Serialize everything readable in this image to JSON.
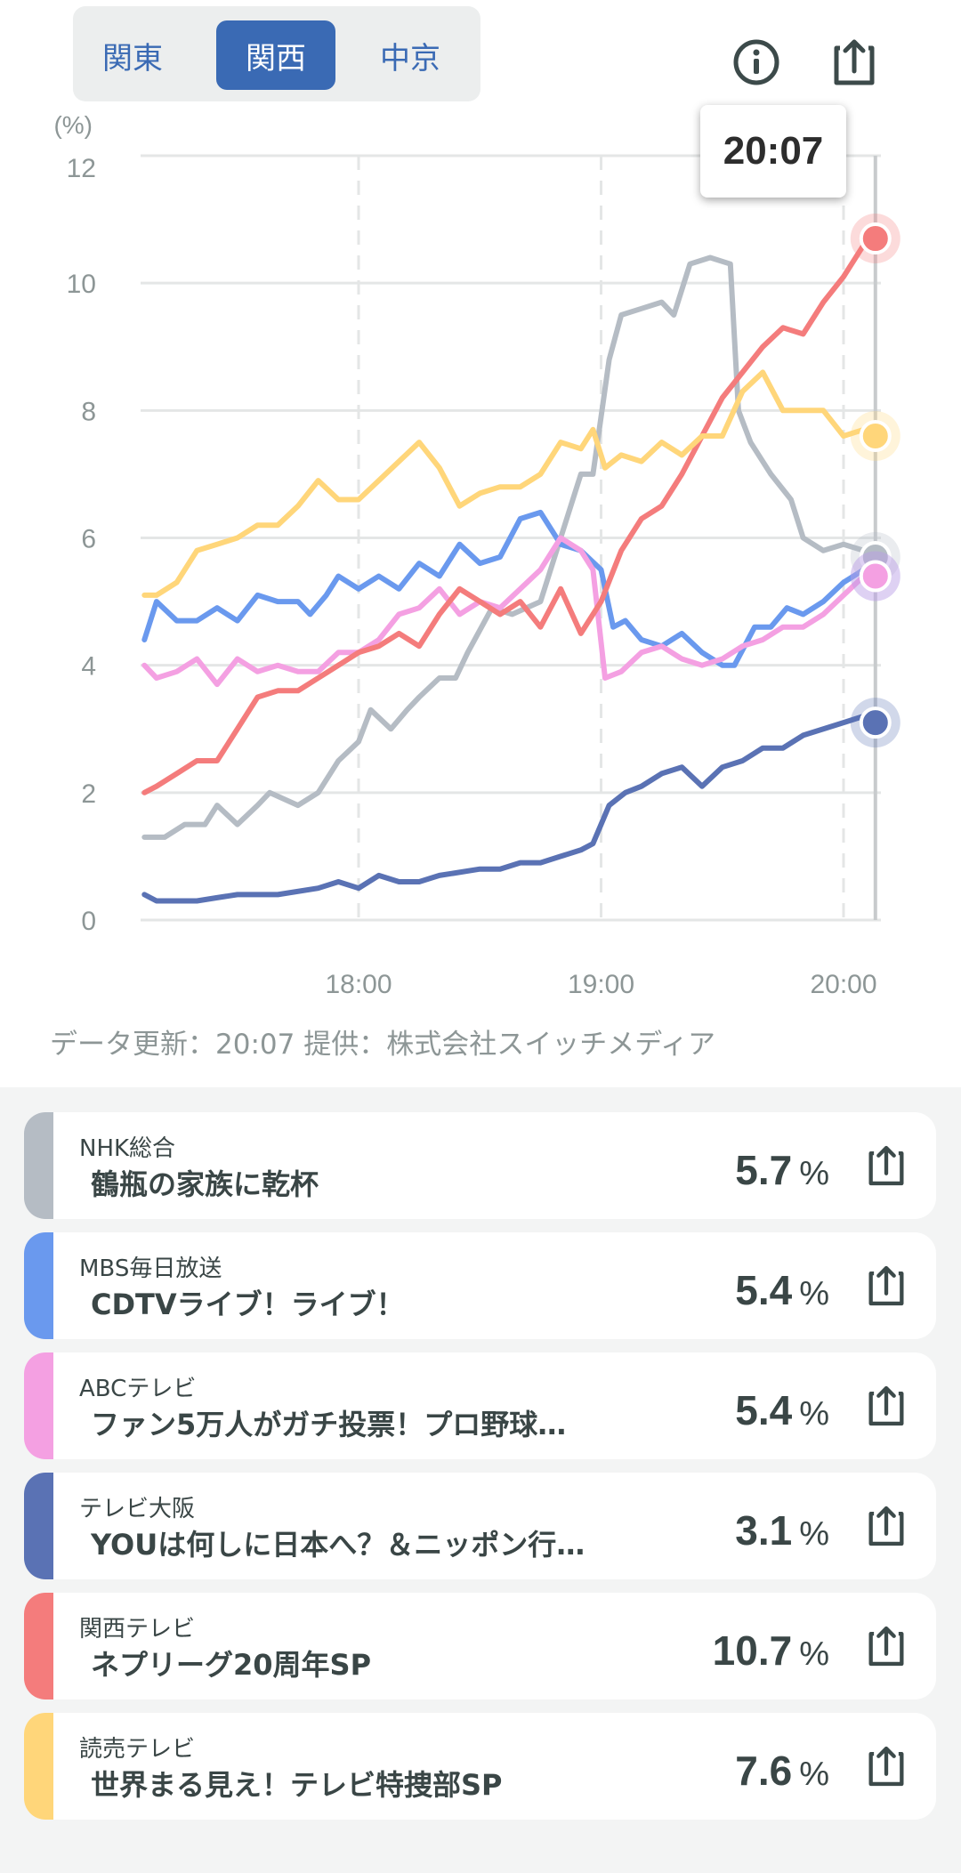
{
  "region_tabs": [
    {
      "label": "関東",
      "active": false
    },
    {
      "label": "関西",
      "active": true
    },
    {
      "label": "中京",
      "active": false
    }
  ],
  "header_icons": [
    "info-icon",
    "share-icon"
  ],
  "tooltip_time": "20:07",
  "footer_note": "データ更新：20:07  提供：株式会社スイッチメディア",
  "chart_data": {
    "type": "line",
    "ylabel": "(%)",
    "ylim": [
      0,
      12
    ],
    "yticks": [
      "0",
      "2",
      "4",
      "6",
      "8",
      "10",
      "12"
    ],
    "xlim": [
      "17:07",
      "20:07"
    ],
    "xticks": [
      "18:00",
      "19:00",
      "20:00"
    ],
    "grid": true,
    "cursor_time": "20:07",
    "series": [
      {
        "key": "nhk",
        "color": "#b5bcc4",
        "points": [
          [
            "17:07",
            1.3
          ],
          [
            "17:12",
            1.3
          ],
          [
            "17:17",
            1.5
          ],
          [
            "17:22",
            1.5
          ],
          [
            "17:25",
            1.8
          ],
          [
            "17:30",
            1.5
          ],
          [
            "17:35",
            1.8
          ],
          [
            "17:38",
            2.0
          ],
          [
            "17:45",
            1.8
          ],
          [
            "17:50",
            2.0
          ],
          [
            "17:55",
            2.5
          ],
          [
            "18:00",
            2.8
          ],
          [
            "18:03",
            3.3
          ],
          [
            "18:08",
            3.0
          ],
          [
            "18:12",
            3.3
          ],
          [
            "18:15",
            3.5
          ],
          [
            "18:20",
            3.8
          ],
          [
            "18:24",
            3.8
          ],
          [
            "18:27",
            4.2
          ],
          [
            "18:33",
            4.9
          ],
          [
            "18:38",
            4.8
          ],
          [
            "18:45",
            5.0
          ],
          [
            "18:50",
            6.0
          ],
          [
            "18:55",
            7.0
          ],
          [
            "18:58",
            7.0
          ],
          [
            "19:02",
            8.8
          ],
          [
            "19:05",
            9.5
          ],
          [
            "19:10",
            9.6
          ],
          [
            "19:15",
            9.7
          ],
          [
            "19:18",
            9.5
          ],
          [
            "19:22",
            10.3
          ],
          [
            "19:27",
            10.4
          ],
          [
            "19:32",
            10.3
          ],
          [
            "19:34",
            8.0
          ],
          [
            "19:37",
            7.5
          ],
          [
            "19:42",
            7.0
          ],
          [
            "19:47",
            6.6
          ],
          [
            "19:50",
            6.0
          ],
          [
            "19:55",
            5.8
          ],
          [
            "20:00",
            5.9
          ],
          [
            "20:05",
            5.8
          ],
          [
            "20:07",
            5.7
          ]
        ]
      },
      {
        "key": "mbs",
        "color": "#6a99ee",
        "points": [
          [
            "17:07",
            4.4
          ],
          [
            "17:10",
            5.0
          ],
          [
            "17:15",
            4.7
          ],
          [
            "17:20",
            4.7
          ],
          [
            "17:25",
            4.9
          ],
          [
            "17:30",
            4.7
          ],
          [
            "17:35",
            5.1
          ],
          [
            "17:40",
            5.0
          ],
          [
            "17:45",
            5.0
          ],
          [
            "17:48",
            4.8
          ],
          [
            "17:52",
            5.1
          ],
          [
            "17:55",
            5.4
          ],
          [
            "18:00",
            5.2
          ],
          [
            "18:05",
            5.4
          ],
          [
            "18:10",
            5.2
          ],
          [
            "18:15",
            5.6
          ],
          [
            "18:20",
            5.4
          ],
          [
            "18:25",
            5.9
          ],
          [
            "18:30",
            5.6
          ],
          [
            "18:35",
            5.7
          ],
          [
            "18:40",
            6.3
          ],
          [
            "18:45",
            6.4
          ],
          [
            "18:50",
            5.9
          ],
          [
            "18:55",
            5.8
          ],
          [
            "19:00",
            5.5
          ],
          [
            "19:03",
            4.6
          ],
          [
            "19:06",
            4.7
          ],
          [
            "19:10",
            4.4
          ],
          [
            "19:15",
            4.3
          ],
          [
            "19:20",
            4.5
          ],
          [
            "19:25",
            4.2
          ],
          [
            "19:30",
            4.0
          ],
          [
            "19:33",
            4.0
          ],
          [
            "19:38",
            4.6
          ],
          [
            "19:42",
            4.6
          ],
          [
            "19:46",
            4.9
          ],
          [
            "19:50",
            4.8
          ],
          [
            "19:55",
            5.0
          ],
          [
            "20:00",
            5.3
          ],
          [
            "20:05",
            5.5
          ],
          [
            "20:07",
            5.4
          ]
        ]
      },
      {
        "key": "abc",
        "color": "#f4a0e2",
        "points": [
          [
            "17:07",
            4.0
          ],
          [
            "17:10",
            3.8
          ],
          [
            "17:15",
            3.9
          ],
          [
            "17:20",
            4.1
          ],
          [
            "17:25",
            3.7
          ],
          [
            "17:30",
            4.1
          ],
          [
            "17:35",
            3.9
          ],
          [
            "17:40",
            4.0
          ],
          [
            "17:45",
            3.9
          ],
          [
            "17:50",
            3.9
          ],
          [
            "17:55",
            4.2
          ],
          [
            "18:00",
            4.2
          ],
          [
            "18:05",
            4.4
          ],
          [
            "18:10",
            4.8
          ],
          [
            "18:15",
            4.9
          ],
          [
            "18:20",
            5.2
          ],
          [
            "18:25",
            4.8
          ],
          [
            "18:30",
            5.0
          ],
          [
            "18:35",
            4.9
          ],
          [
            "18:40",
            5.2
          ],
          [
            "18:45",
            5.5
          ],
          [
            "18:50",
            6.0
          ],
          [
            "18:55",
            5.8
          ],
          [
            "18:58",
            5.5
          ],
          [
            "19:01",
            3.8
          ],
          [
            "19:05",
            3.9
          ],
          [
            "19:10",
            4.2
          ],
          [
            "19:15",
            4.3
          ],
          [
            "19:20",
            4.1
          ],
          [
            "19:25",
            4.0
          ],
          [
            "19:30",
            4.1
          ],
          [
            "19:35",
            4.3
          ],
          [
            "19:40",
            4.4
          ],
          [
            "19:45",
            4.6
          ],
          [
            "19:50",
            4.6
          ],
          [
            "19:55",
            4.8
          ],
          [
            "20:00",
            5.1
          ],
          [
            "20:05",
            5.4
          ],
          [
            "20:07",
            5.4
          ]
        ]
      },
      {
        "key": "tvo",
        "color": "#5a72b4",
        "points": [
          [
            "17:07",
            0.4
          ],
          [
            "17:10",
            0.3
          ],
          [
            "17:20",
            0.3
          ],
          [
            "17:25",
            0.35
          ],
          [
            "17:30",
            0.4
          ],
          [
            "17:40",
            0.4
          ],
          [
            "17:50",
            0.5
          ],
          [
            "17:55",
            0.6
          ],
          [
            "18:00",
            0.5
          ],
          [
            "18:05",
            0.7
          ],
          [
            "18:10",
            0.6
          ],
          [
            "18:15",
            0.6
          ],
          [
            "18:20",
            0.7
          ],
          [
            "18:30",
            0.8
          ],
          [
            "18:35",
            0.8
          ],
          [
            "18:40",
            0.9
          ],
          [
            "18:45",
            0.9
          ],
          [
            "18:50",
            1.0
          ],
          [
            "18:55",
            1.1
          ],
          [
            "18:58",
            1.2
          ],
          [
            "19:02",
            1.8
          ],
          [
            "19:06",
            2.0
          ],
          [
            "19:10",
            2.1
          ],
          [
            "19:15",
            2.3
          ],
          [
            "19:20",
            2.4
          ],
          [
            "19:25",
            2.1
          ],
          [
            "19:30",
            2.4
          ],
          [
            "19:35",
            2.5
          ],
          [
            "19:40",
            2.7
          ],
          [
            "19:45",
            2.7
          ],
          [
            "19:50",
            2.9
          ],
          [
            "19:55",
            3.0
          ],
          [
            "20:00",
            3.1
          ],
          [
            "20:05",
            3.2
          ],
          [
            "20:07",
            3.1
          ]
        ]
      },
      {
        "key": "ktv",
        "color": "#f47c7c",
        "points": [
          [
            "17:07",
            2.0
          ],
          [
            "17:10",
            2.1
          ],
          [
            "17:15",
            2.3
          ],
          [
            "17:20",
            2.5
          ],
          [
            "17:25",
            2.5
          ],
          [
            "17:30",
            3.0
          ],
          [
            "17:35",
            3.5
          ],
          [
            "17:40",
            3.6
          ],
          [
            "17:45",
            3.6
          ],
          [
            "17:50",
            3.8
          ],
          [
            "17:55",
            4.0
          ],
          [
            "18:00",
            4.2
          ],
          [
            "18:05",
            4.3
          ],
          [
            "18:10",
            4.5
          ],
          [
            "18:15",
            4.3
          ],
          [
            "18:20",
            4.8
          ],
          [
            "18:25",
            5.2
          ],
          [
            "18:30",
            5.0
          ],
          [
            "18:35",
            4.8
          ],
          [
            "18:40",
            5.0
          ],
          [
            "18:45",
            4.6
          ],
          [
            "18:50",
            5.2
          ],
          [
            "18:55",
            4.5
          ],
          [
            "19:00",
            5.0
          ],
          [
            "19:05",
            5.8
          ],
          [
            "19:10",
            6.3
          ],
          [
            "19:15",
            6.5
          ],
          [
            "19:20",
            7.0
          ],
          [
            "19:25",
            7.6
          ],
          [
            "19:30",
            8.2
          ],
          [
            "19:35",
            8.6
          ],
          [
            "19:40",
            9.0
          ],
          [
            "19:45",
            9.3
          ],
          [
            "19:50",
            9.2
          ],
          [
            "19:55",
            9.7
          ],
          [
            "20:00",
            10.1
          ],
          [
            "20:05",
            10.6
          ],
          [
            "20:07",
            10.7
          ]
        ]
      },
      {
        "key": "ytv",
        "color": "#ffd67a",
        "points": [
          [
            "17:07",
            5.1
          ],
          [
            "17:10",
            5.1
          ],
          [
            "17:15",
            5.3
          ],
          [
            "17:20",
            5.8
          ],
          [
            "17:25",
            5.9
          ],
          [
            "17:30",
            6.0
          ],
          [
            "17:35",
            6.2
          ],
          [
            "17:40",
            6.2
          ],
          [
            "17:45",
            6.5
          ],
          [
            "17:50",
            6.9
          ],
          [
            "17:55",
            6.6
          ],
          [
            "18:00",
            6.6
          ],
          [
            "18:05",
            6.9
          ],
          [
            "18:10",
            7.2
          ],
          [
            "18:15",
            7.5
          ],
          [
            "18:20",
            7.1
          ],
          [
            "18:25",
            6.5
          ],
          [
            "18:30",
            6.7
          ],
          [
            "18:35",
            6.8
          ],
          [
            "18:40",
            6.8
          ],
          [
            "18:45",
            7.0
          ],
          [
            "18:50",
            7.5
          ],
          [
            "18:55",
            7.4
          ],
          [
            "18:58",
            7.7
          ],
          [
            "19:01",
            7.1
          ],
          [
            "19:05",
            7.3
          ],
          [
            "19:10",
            7.2
          ],
          [
            "19:15",
            7.5
          ],
          [
            "19:20",
            7.3
          ],
          [
            "19:25",
            7.6
          ],
          [
            "19:30",
            7.6
          ],
          [
            "19:35",
            8.3
          ],
          [
            "19:40",
            8.6
          ],
          [
            "19:45",
            8.0
          ],
          [
            "19:50",
            8.0
          ],
          [
            "19:55",
            8.0
          ],
          [
            "20:00",
            7.6
          ],
          [
            "20:05",
            7.7
          ],
          [
            "20:07",
            7.6
          ]
        ]
      }
    ]
  },
  "channels": [
    {
      "name": "NHK総合",
      "program": "鶴瓶の家族に乾杯",
      "rating": "5.7",
      "unit": "%",
      "color": "#b5bcc4"
    },
    {
      "name": "MBS毎日放送",
      "program": "CDTVライブ！ライブ！",
      "rating": "5.4",
      "unit": "%",
      "color": "#6a99ee"
    },
    {
      "name": "ABCテレビ",
      "program": "ファン5万人がガチ投票！プロ野球…",
      "rating": "5.4",
      "unit": "%",
      "color": "#f4a0e2"
    },
    {
      "name": "テレビ大阪",
      "program": "YOUは何しに日本へ？＆ニッポン行…",
      "rating": "3.1",
      "unit": "%",
      "color": "#5a72b4"
    },
    {
      "name": "関西テレビ",
      "program": "ネプリーグ20周年SP",
      "rating": "10.7",
      "unit": "%",
      "color": "#f47c7c"
    },
    {
      "name": "読売テレビ",
      "program": "世界まる見え！テレビ特捜部SP",
      "rating": "7.6",
      "unit": "%",
      "color": "#ffd67a"
    }
  ]
}
